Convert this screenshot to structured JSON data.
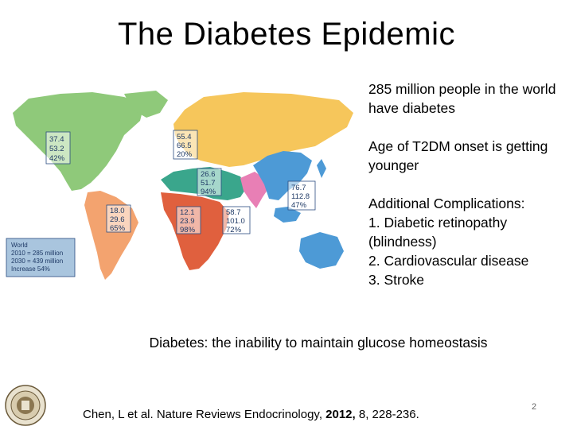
{
  "slide": {
    "title": "The Diabetes Epidemic",
    "bullets": [
      "285 million people in the world have diabetes",
      "Age of T2DM onset is getting younger",
      "Additional Complications:\n1. Diabetic retinopathy (blindness)\n2. Cardiovascular disease\n3. Stroke"
    ],
    "definition": "Diabetes: the inability to maintain glucose homeostasis",
    "citation": {
      "prefix": "Chen, L et al. Nature Reviews Endocrinology, ",
      "year": "2012,",
      "suffix": " 8, 228-236."
    },
    "page_number": "2"
  },
  "map": {
    "regions": [
      {
        "name": "North America",
        "color": "#8fc97a",
        "values": [
          "37.4",
          "53.2",
          "42%"
        ]
      },
      {
        "name": "Europe",
        "color": "#f6c65b",
        "values": [
          "55.4",
          "66.5",
          "20%"
        ]
      },
      {
        "name": "Middle East & North Africa",
        "color": "#3aa68c",
        "values": [
          "26.6",
          "51.7",
          "94%"
        ]
      },
      {
        "name": "South & Central America",
        "color": "#f3a36f",
        "values": [
          "18.0",
          "29.6",
          "65%"
        ]
      },
      {
        "name": "Africa",
        "color": "#e0603e",
        "values": [
          "12.1",
          "23.9",
          "98%"
        ]
      },
      {
        "name": "South-East Asia",
        "color": "#e87fb5",
        "values": [
          "58.7",
          "101.0",
          "72%"
        ]
      },
      {
        "name": "Western Pacific",
        "color": "#4d9ad6",
        "values": [
          "76.7",
          "112.8",
          "47%"
        ]
      }
    ],
    "world_box": [
      "World",
      "2010 = 285 million",
      "2030 = 439 million",
      "Increase 54%"
    ]
  }
}
